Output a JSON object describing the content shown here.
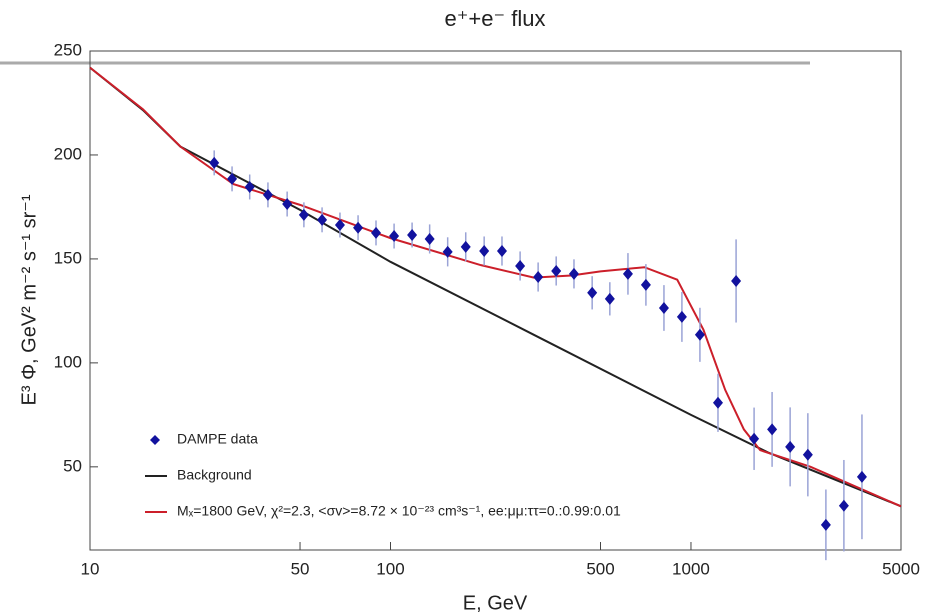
{
  "chart_data": {
    "type": "scatter",
    "title": "e⁺+e⁻ flux",
    "xlabel": "E, GeV",
    "ylabel": "E³ Φ, GeV² m⁻² s⁻¹ sr⁻¹",
    "xscale": "log",
    "xlim": [
      10,
      5000
    ],
    "ylim": [
      10,
      250
    ],
    "xticks": [
      10,
      50,
      100,
      500,
      1000,
      5000
    ],
    "yticks": [
      50,
      100,
      150,
      200,
      250
    ],
    "legend": "lower left",
    "series": [
      {
        "name": "DAMPE data",
        "kind": "points",
        "color": "#12129e",
        "error_color": "#9aa3d6",
        "x": [
          25.9,
          29.7,
          34.0,
          39.1,
          45.3,
          51.5,
          59.2,
          67.9,
          78.0,
          89.5,
          102.8,
          118,
          135,
          155,
          178,
          205,
          235,
          270,
          310,
          356,
          408,
          469,
          537,
          617,
          708,
          813,
          933,
          1071,
          1230,
          1413,
          1622,
          1862,
          2138,
          2449,
          2812,
          3228,
          3707
        ],
        "values": [
          196.2,
          188.5,
          184.6,
          180.8,
          176.4,
          171.2,
          168.8,
          166.3,
          165,
          162.5,
          161,
          161.5,
          159.6,
          153.4,
          155.8,
          153.8,
          153.8,
          146.6,
          141.3,
          144.2,
          142.8,
          133.7,
          130.8,
          142.8,
          137.5,
          126.4,
          122.1,
          113.5,
          80.8,
          139.4,
          63.5,
          68,
          59.6,
          55.8,
          22.1,
          31.3,
          45.2
        ],
        "errors": [
          6,
          6,
          6,
          6,
          6,
          6,
          6,
          6,
          6,
          6,
          6,
          6,
          7,
          7,
          7,
          7,
          7,
          7,
          7,
          7,
          7,
          8,
          8,
          10,
          10,
          11,
          12,
          13,
          14,
          20,
          15,
          18,
          19,
          20,
          17,
          22,
          30
        ]
      },
      {
        "name": "Background",
        "kind": "line",
        "color": "#222222",
        "x": [
          10,
          15,
          20,
          50,
          100,
          300,
          1000,
          1800,
          5000
        ],
        "values": [
          242,
          221.6,
          204,
          173.6,
          148.6,
          113.5,
          75,
          57,
          31
        ]
      },
      {
        "name": "Mₓ=1800 GeV, χ²=2.3, <σv>=8.72 × 10⁻²³ cm³s⁻¹, ee:μμ:ττ=0.:0.99:0.01",
        "kind": "line",
        "color": "#cc1f2a",
        "x": [
          10,
          15,
          20,
          30,
          50,
          100,
          200,
          300,
          400,
          500,
          700,
          900,
          1100,
          1300,
          1500,
          1700,
          2500,
          5000
        ],
        "values": [
          242,
          222,
          204,
          186,
          176,
          160,
          147,
          141,
          142,
          144,
          146,
          140,
          116,
          87,
          68,
          58,
          50,
          31
        ]
      }
    ]
  }
}
